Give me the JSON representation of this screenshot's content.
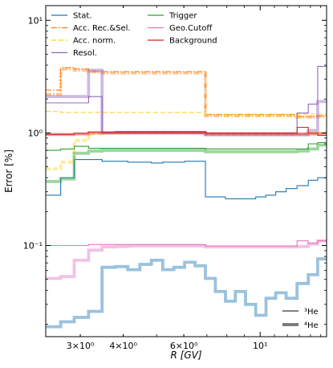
{
  "chart_data": {
    "type": "line",
    "xlabel": "R [GV]",
    "ylabel": "Error [%]",
    "xscale": "log",
    "yscale": "log",
    "xlim": [
      2.38,
      15.6
    ],
    "ylim": [
      0.0155,
      13.5
    ],
    "x_ticks": [
      {
        "value": 3,
        "label": "3×10⁰"
      },
      {
        "value": 4,
        "label": "4×10⁰"
      },
      {
        "value": 6,
        "label": "6×10⁰"
      },
      {
        "value": 10,
        "label": "10¹"
      }
    ],
    "y_ticks": [
      {
        "value": 0.1,
        "label": "10⁻¹"
      },
      {
        "value": 1,
        "label": "10⁰"
      },
      {
        "value": 10,
        "label": "10¹"
      }
    ],
    "bin_edges": [
      2.38,
      2.63,
      2.88,
      3.17,
      3.47,
      3.79,
      4.12,
      4.47,
      4.83,
      5.21,
      5.61,
      6.03,
      6.47,
      6.93,
      7.41,
      7.93,
      8.47,
      9.07,
      9.71,
      10.4,
      11.1,
      11.9,
      12.8,
      13.8,
      14.7,
      15.6
    ],
    "legend_position": "top",
    "series": [
      {
        "name": "Stat.",
        "color": "#1f77b4",
        "style": "solid",
        "he3": [
          0.28,
          0.4,
          0.58,
          0.58,
          0.56,
          0.56,
          0.55,
          0.55,
          0.54,
          0.55,
          0.55,
          0.56,
          0.56,
          0.27,
          0.27,
          0.26,
          0.26,
          0.26,
          0.27,
          0.28,
          0.3,
          0.32,
          0.34,
          0.38,
          0.4
        ],
        "he4": [
          0.019,
          0.021,
          0.023,
          0.026,
          0.064,
          0.065,
          0.061,
          0.068,
          0.074,
          0.061,
          0.064,
          0.071,
          0.066,
          0.051,
          0.039,
          0.032,
          0.039,
          0.03,
          0.024,
          0.034,
          0.038,
          0.034,
          0.046,
          0.055,
          0.076
        ]
      },
      {
        "name": "Acc. Rec.&Sel.",
        "color": "#ff7f0e",
        "style": "dashdot",
        "he3": [
          2.4,
          3.8,
          3.7,
          3.5,
          3.5,
          3.5,
          3.5,
          3.5,
          3.5,
          3.5,
          3.5,
          3.5,
          3.5,
          1.45,
          1.45,
          1.45,
          1.45,
          1.45,
          1.45,
          1.45,
          1.45,
          1.45,
          1.4,
          1.4,
          1.42
        ],
        "he4": [
          2.2,
          3.7,
          3.6,
          3.5,
          3.4,
          3.4,
          3.4,
          3.4,
          3.4,
          3.4,
          3.4,
          3.4,
          3.4,
          1.42,
          1.42,
          1.42,
          1.42,
          1.42,
          1.42,
          1.42,
          1.42,
          1.42,
          1.38,
          1.38,
          1.4
        ]
      },
      {
        "name": "Acc. norm.",
        "color": "#ffd21f",
        "style": "dashed",
        "he3": [
          1.55,
          1.52,
          1.52,
          1.52,
          1.52,
          1.52,
          1.52,
          1.52,
          1.52,
          1.52,
          1.52,
          1.52,
          1.52,
          1.47,
          1.47,
          1.47,
          1.47,
          1.47,
          1.47,
          1.47,
          1.47,
          1.47,
          1.47,
          1.47,
          1.47
        ],
        "he4": [
          0.48,
          0.55,
          0.86,
          0.98,
          1.0,
          1.0,
          1.0,
          1.0,
          1.0,
          1.0,
          1.0,
          1.0,
          1.0,
          0.97,
          0.97,
          0.97,
          0.97,
          0.97,
          0.97,
          0.97,
          0.97,
          0.97,
          0.98,
          0.98,
          1.0
        ]
      },
      {
        "name": "Resol.",
        "color": "#9467bd",
        "style": "solid",
        "he3": [
          1.85,
          1.85,
          1.85,
          2.1,
          1.02,
          1.03,
          1.03,
          1.03,
          1.03,
          1.03,
          1.03,
          1.03,
          1.03,
          0.99,
          0.99,
          0.99,
          0.99,
          0.99,
          0.99,
          0.99,
          0.99,
          0.99,
          1.5,
          1.8,
          3.9
        ],
        "he4": [
          2.1,
          2.1,
          2.1,
          3.6,
          1.0,
          1.0,
          1.0,
          1.0,
          1.0,
          1.0,
          1.0,
          1.0,
          1.0,
          0.96,
          0.96,
          0.96,
          0.96,
          0.96,
          0.96,
          0.96,
          0.96,
          0.96,
          0.96,
          1.05,
          1.9
        ]
      },
      {
        "name": "Trigger",
        "color": "#2ca02c",
        "style": "solid",
        "he3": [
          0.7,
          0.72,
          0.76,
          0.73,
          0.73,
          0.73,
          0.73,
          0.73,
          0.73,
          0.73,
          0.73,
          0.73,
          0.73,
          0.72,
          0.72,
          0.72,
          0.72,
          0.72,
          0.72,
          0.72,
          0.72,
          0.72,
          0.72,
          0.8,
          0.82
        ],
        "he4": [
          0.37,
          0.39,
          0.66,
          0.69,
          0.7,
          0.7,
          0.7,
          0.7,
          0.7,
          0.7,
          0.7,
          0.7,
          0.7,
          0.68,
          0.68,
          0.68,
          0.68,
          0.68,
          0.68,
          0.68,
          0.68,
          0.68,
          0.69,
          0.72,
          0.78
        ]
      },
      {
        "name": "Geo.Cutoff",
        "color": "#e377c2",
        "style": "solid",
        "he3": [
          0.1,
          0.1,
          0.1,
          0.102,
          0.102,
          0.102,
          0.102,
          0.102,
          0.102,
          0.102,
          0.102,
          0.102,
          0.102,
          0.099,
          0.099,
          0.099,
          0.099,
          0.099,
          0.099,
          0.099,
          0.099,
          0.099,
          0.11,
          0.105,
          0.11
        ],
        "he4": [
          0.051,
          0.053,
          0.074,
          0.091,
          0.097,
          0.098,
          0.099,
          0.099,
          0.099,
          0.099,
          0.099,
          0.099,
          0.099,
          0.097,
          0.097,
          0.097,
          0.097,
          0.097,
          0.097,
          0.097,
          0.097,
          0.097,
          0.098,
          0.103,
          0.11
        ]
      },
      {
        "name": "Background",
        "color": "#d62728",
        "style": "solid",
        "he3": [
          0.97,
          0.97,
          0.99,
          1.02,
          1.01,
          1.01,
          1.01,
          1.01,
          1.01,
          1.01,
          1.01,
          1.01,
          1.01,
          1.0,
          1.0,
          1.0,
          1.0,
          1.0,
          1.0,
          1.0,
          1.0,
          1.0,
          1.12,
          1.0,
          0.95
        ],
        "he4": [
          0.97,
          0.97,
          0.98,
          1.0,
          1.0,
          1.0,
          1.0,
          1.0,
          1.0,
          1.0,
          1.0,
          1.0,
          1.0,
          0.98,
          0.98,
          0.98,
          0.98,
          0.98,
          0.98,
          0.98,
          0.98,
          0.98,
          0.98,
          0.98,
          0.98
        ]
      }
    ],
    "isotope_legend": [
      {
        "label": "³He",
        "linewidth": "thin"
      },
      {
        "label": "⁴He",
        "linewidth": "thick"
      }
    ]
  }
}
